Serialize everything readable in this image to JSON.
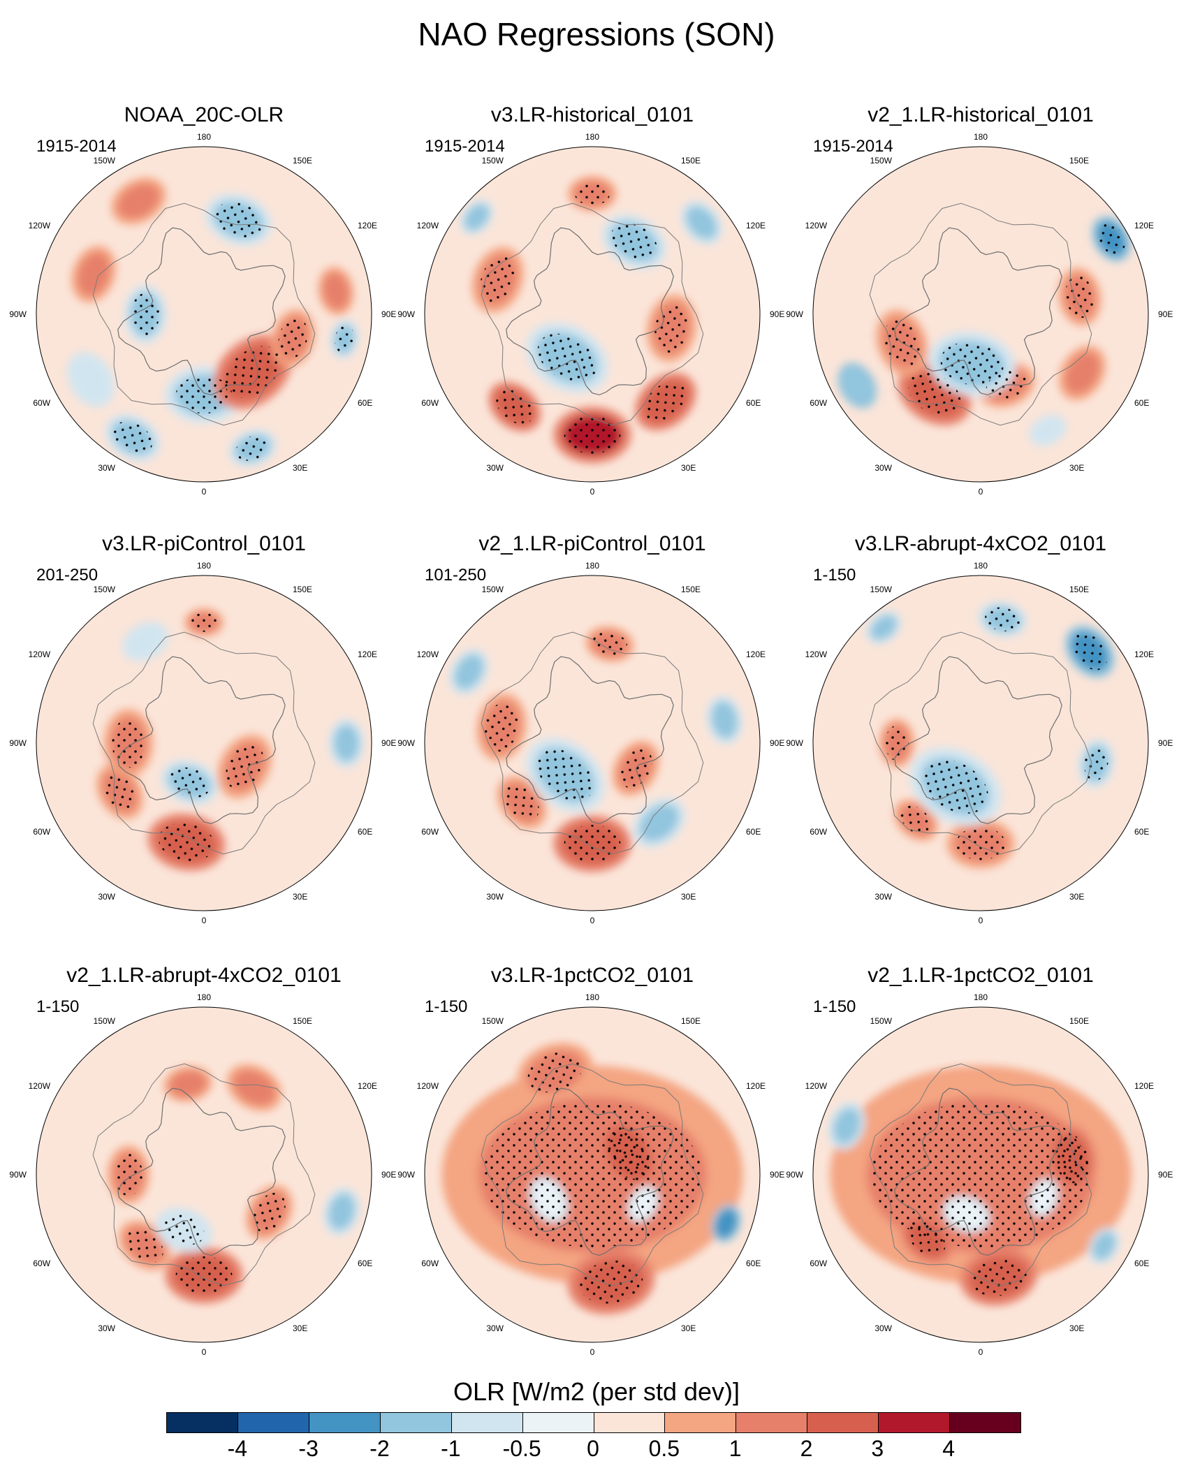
{
  "title": "NAO Regressions (SON)",
  "longitude_labels": [
    "180",
    "150E",
    "120E",
    "90E",
    "60E",
    "30E",
    "0",
    "30W",
    "60W",
    "90W",
    "120W",
    "150W"
  ],
  "panels": [
    {
      "title": "NOAA_20C-OLR",
      "period": "1915-2014",
      "blobs": [
        {
          "lon": -150,
          "r": 0.78,
          "s": 0.12,
          "v": 1.2
        },
        {
          "lon": 0,
          "r": 0.48,
          "s": 0.16,
          "v": -1.6,
          "stip": true
        },
        {
          "lon": 40,
          "r": 0.45,
          "s": 0.18,
          "v": 2.2,
          "stip": true
        },
        {
          "lon": 75,
          "r": 0.55,
          "s": 0.12,
          "v": 1.8,
          "stip": true
        },
        {
          "lon": -30,
          "r": 0.85,
          "s": 0.12,
          "v": -1.8,
          "stip": true
        },
        {
          "lon": 20,
          "r": 0.85,
          "s": 0.1,
          "v": -1.5,
          "stip": true
        },
        {
          "lon": 160,
          "r": 0.6,
          "s": 0.14,
          "v": -1.4,
          "stip": true
        },
        {
          "lon": -90,
          "r": 0.35,
          "s": 0.12,
          "v": -1.2,
          "stip": true
        },
        {
          "lon": 100,
          "r": 0.8,
          "s": 0.1,
          "v": 1.2
        },
        {
          "lon": -110,
          "r": 0.7,
          "s": 0.12,
          "v": 1.0
        },
        {
          "lon": -60,
          "r": 0.78,
          "s": 0.12,
          "v": -1.0
        },
        {
          "lon": 80,
          "r": 0.85,
          "s": 0.08,
          "v": -1.5,
          "stip": true
        }
      ]
    },
    {
      "title": "v3.LR-historical_0101",
      "period": "1915-2014",
      "blobs": [
        {
          "lon": 0,
          "r": 0.72,
          "s": 0.16,
          "v": 3.0,
          "stip": true
        },
        {
          "lon": -40,
          "r": 0.72,
          "s": 0.12,
          "v": 2.4,
          "stip": true
        },
        {
          "lon": 40,
          "r": 0.68,
          "s": 0.14,
          "v": 2.0,
          "stip": true
        },
        {
          "lon": 80,
          "r": 0.48,
          "s": 0.14,
          "v": 1.5,
          "stip": true
        },
        {
          "lon": -110,
          "r": 0.6,
          "s": 0.14,
          "v": 1.6,
          "stip": true
        },
        {
          "lon": -30,
          "r": 0.3,
          "s": 0.18,
          "v": -1.2,
          "stip": true
        },
        {
          "lon": 150,
          "r": 0.5,
          "s": 0.14,
          "v": -1.4,
          "stip": true
        },
        {
          "lon": 180,
          "r": 0.72,
          "s": 0.1,
          "v": 1.4,
          "stip": true
        },
        {
          "lon": -130,
          "r": 0.9,
          "s": 0.08,
          "v": -1.3
        },
        {
          "lon": 130,
          "r": 0.85,
          "s": 0.1,
          "v": -1.5
        }
      ]
    },
    {
      "title": "v2_1.LR-historical_0101",
      "period": "1915-2014",
      "blobs": [
        {
          "lon": -30,
          "r": 0.55,
          "s": 0.16,
          "v": 2.3,
          "stip": true
        },
        {
          "lon": -70,
          "r": 0.5,
          "s": 0.14,
          "v": 1.8,
          "stip": true
        },
        {
          "lon": 20,
          "r": 0.45,
          "s": 0.12,
          "v": 1.5,
          "stip": true
        },
        {
          "lon": -10,
          "r": 0.3,
          "s": 0.18,
          "v": -1.3,
          "stip": true
        },
        {
          "lon": 120,
          "r": 0.9,
          "s": 0.1,
          "v": -2.2,
          "stip": true
        },
        {
          "lon": 100,
          "r": 0.6,
          "s": 0.12,
          "v": 1.5,
          "stip": true
        },
        {
          "lon": -60,
          "r": 0.85,
          "s": 0.1,
          "v": -2.0
        },
        {
          "lon": 60,
          "r": 0.7,
          "s": 0.12,
          "v": 1.2
        },
        {
          "lon": 30,
          "r": 0.8,
          "s": 0.08,
          "v": -1.0
        }
      ]
    },
    {
      "title": "v3.LR-piControl_0101",
      "period": "201-250",
      "blobs": [
        {
          "lon": -10,
          "r": 0.6,
          "s": 0.16,
          "v": 2.3,
          "stip": true
        },
        {
          "lon": -60,
          "r": 0.58,
          "s": 0.12,
          "v": 1.8,
          "stip": true
        },
        {
          "lon": -90,
          "r": 0.45,
          "s": 0.14,
          "v": 1.8,
          "stip": true
        },
        {
          "lon": 60,
          "r": 0.28,
          "s": 0.14,
          "v": 1.6,
          "stip": true
        },
        {
          "lon": -20,
          "r": 0.25,
          "s": 0.12,
          "v": -1.2,
          "stip": true
        },
        {
          "lon": 90,
          "r": 0.85,
          "s": 0.1,
          "v": -1.6
        },
        {
          "lon": 180,
          "r": 0.72,
          "s": 0.08,
          "v": 1.4,
          "stip": true
        },
        {
          "lon": -150,
          "r": 0.7,
          "s": 0.1,
          "v": -1.0
        }
      ]
    },
    {
      "title": "v2_1.LR-piControl_0101",
      "period": "101-250",
      "blobs": [
        {
          "lon": 0,
          "r": 0.6,
          "s": 0.16,
          "v": 2.0,
          "stip": true
        },
        {
          "lon": -50,
          "r": 0.55,
          "s": 0.12,
          "v": 1.5,
          "stip": true
        },
        {
          "lon": -100,
          "r": 0.55,
          "s": 0.14,
          "v": 1.4,
          "stip": true
        },
        {
          "lon": 60,
          "r": 0.3,
          "s": 0.12,
          "v": 1.4,
          "stip": true
        },
        {
          "lon": -40,
          "r": 0.25,
          "s": 0.18,
          "v": -1.8,
          "stip": true
        },
        {
          "lon": 40,
          "r": 0.62,
          "s": 0.12,
          "v": -1.2
        },
        {
          "lon": 170,
          "r": 0.6,
          "s": 0.1,
          "v": 1.5,
          "stip": true
        },
        {
          "lon": -120,
          "r": 0.85,
          "s": 0.1,
          "v": -1.2
        },
        {
          "lon": 100,
          "r": 0.8,
          "s": 0.1,
          "v": -1.2
        }
      ]
    },
    {
      "title": "v3.LR-abrupt-4xCO2_0101",
      "period": "1-150",
      "blobs": [
        {
          "lon": 0,
          "r": 0.6,
          "s": 0.14,
          "v": 1.6,
          "stip": true
        },
        {
          "lon": -40,
          "r": 0.6,
          "s": 0.1,
          "v": 1.4,
          "stip": true
        },
        {
          "lon": -30,
          "r": 0.3,
          "s": 0.2,
          "v": -1.5,
          "stip": true
        },
        {
          "lon": 130,
          "r": 0.85,
          "s": 0.12,
          "v": -2.6,
          "stip": true
        },
        {
          "lon": 170,
          "r": 0.75,
          "s": 0.1,
          "v": -1.8,
          "stip": true
        },
        {
          "lon": 80,
          "r": 0.7,
          "s": 0.1,
          "v": -1.2,
          "stip": true
        },
        {
          "lon": -90,
          "r": 0.5,
          "s": 0.1,
          "v": 1.0,
          "stip": true
        },
        {
          "lon": -140,
          "r": 0.9,
          "s": 0.08,
          "v": -1.2
        }
      ]
    },
    {
      "title": "v2_1.LR-abrupt-4xCO2_0101",
      "period": "1-150",
      "blobs": [
        {
          "lon": 0,
          "r": 0.6,
          "s": 0.16,
          "v": 2.0,
          "stip": true
        },
        {
          "lon": -40,
          "r": 0.55,
          "s": 0.12,
          "v": 1.5,
          "stip": true
        },
        {
          "lon": 60,
          "r": 0.45,
          "s": 0.12,
          "v": 1.4,
          "stip": true
        },
        {
          "lon": -90,
          "r": 0.45,
          "s": 0.12,
          "v": 1.2,
          "stip": true
        },
        {
          "lon": 75,
          "r": 0.85,
          "s": 0.1,
          "v": -1.6
        },
        {
          "lon": -20,
          "r": 0.35,
          "s": 0.12,
          "v": -1.0,
          "stip": true
        },
        {
          "lon": 150,
          "r": 0.6,
          "s": 0.12,
          "v": 1.0
        },
        {
          "lon": -170,
          "r": 0.55,
          "s": 0.1,
          "v": 1.0
        }
      ]
    },
    {
      "title": "v3.LR-1pctCO2_0101",
      "period": "1-150",
      "blobs": [
        {
          "lon": 0,
          "r": 0.0,
          "s": 0.62,
          "v": 1.6,
          "stip": true
        },
        {
          "lon": 10,
          "r": 0.65,
          "s": 0.18,
          "v": 2.2,
          "stip": true
        },
        {
          "lon": 120,
          "r": 0.25,
          "s": 0.16,
          "v": 2.4,
          "stip": true
        },
        {
          "lon": -160,
          "r": 0.65,
          "s": 0.16,
          "v": 1.8,
          "stip": true
        },
        {
          "lon": 70,
          "r": 0.85,
          "s": 0.08,
          "v": -2.4
        },
        {
          "lon": -60,
          "r": 0.3,
          "s": 0.1,
          "v": -0.4
        },
        {
          "lon": 60,
          "r": 0.35,
          "s": 0.08,
          "v": -0.5
        }
      ]
    },
    {
      "title": "v2_1.LR-1pctCO2_0101",
      "period": "1-150",
      "blobs": [
        {
          "lon": 0,
          "r": 0.0,
          "s": 0.62,
          "v": 1.6,
          "stip": true
        },
        {
          "lon": 10,
          "r": 0.62,
          "s": 0.16,
          "v": 2.4,
          "stip": true
        },
        {
          "lon": -40,
          "r": 0.5,
          "s": 0.12,
          "v": 2.0,
          "stip": true
        },
        {
          "lon": 100,
          "r": 0.55,
          "s": 0.14,
          "v": 2.0,
          "stip": true
        },
        {
          "lon": -110,
          "r": 0.85,
          "s": 0.1,
          "v": -1.6
        },
        {
          "lon": 60,
          "r": 0.85,
          "s": 0.08,
          "v": -1.2
        },
        {
          "lon": -20,
          "r": 0.25,
          "s": 0.1,
          "v": -0.4
        },
        {
          "lon": 70,
          "r": 0.4,
          "s": 0.08,
          "v": -0.4
        }
      ]
    }
  ],
  "colorbar": {
    "title": "OLR [W/m2 (per std dev)]",
    "labels": [
      "-4",
      "-3",
      "-2",
      "-1",
      "-0.5",
      "0",
      "0.5",
      "1",
      "2",
      "3",
      "4"
    ],
    "levels": [
      -4,
      -3,
      -2,
      -1,
      -0.5,
      0,
      0.5,
      1,
      2,
      3,
      4
    ],
    "colors": [
      "#053061",
      "#2166ac",
      "#4393c3",
      "#92c5de",
      "#d1e5f0",
      "#ecf3f7",
      "#fbe5d9",
      "#f4a582",
      "#e6806a",
      "#d6604d",
      "#b2182b",
      "#67001f"
    ]
  }
}
